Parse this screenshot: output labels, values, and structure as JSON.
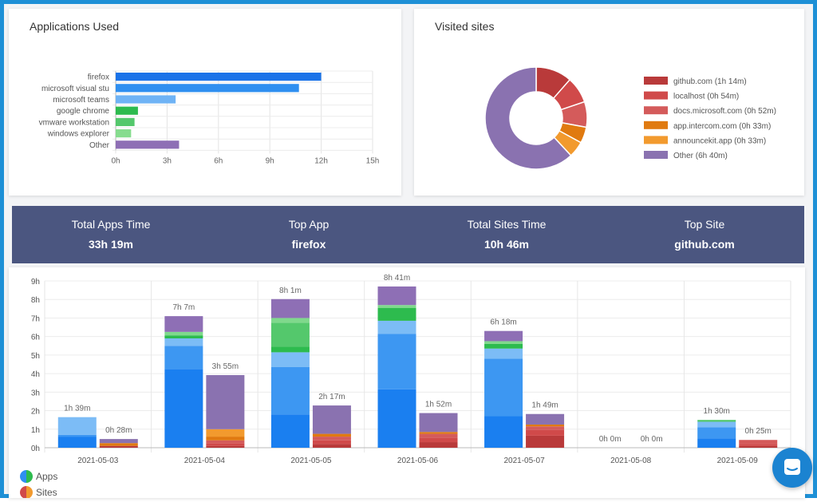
{
  "apps_panel": {
    "title": "Applications Used"
  },
  "sites_panel": {
    "title": "Visited sites"
  },
  "summary": {
    "total_apps_label": "Total Apps Time",
    "total_apps_value": "33h 19m",
    "top_app_label": "Top App",
    "top_app_value": "firefox",
    "total_sites_label": "Total Sites Time",
    "total_sites_value": "10h 46m",
    "top_site_label": "Top Site",
    "top_site_value": "github.com"
  },
  "chart_data": [
    {
      "type": "bar",
      "orientation": "horizontal",
      "title": "Applications Used",
      "categories": [
        "firefox",
        "microsoft visual stu",
        "microsoft teams",
        "google chrome",
        "vmware workstation",
        "windows explorer",
        "Other"
      ],
      "values": [
        12,
        10.7,
        3.5,
        1.3,
        1.1,
        0.9,
        3.7
      ],
      "colors": [
        "#1a73e8",
        "#2f8ff0",
        "#6fb3f5",
        "#2dbb4e",
        "#54c86c",
        "#86dc8e",
        "#8e6fb5"
      ],
      "xticks": [
        "0h",
        "3h",
        "6h",
        "9h",
        "12h",
        "15h"
      ],
      "xlim": [
        0,
        15
      ],
      "grid": true
    },
    {
      "type": "pie",
      "style": "donut",
      "title": "Visited sites",
      "labels": [
        "github.com (1h 14m)",
        "localhost (0h 54m)",
        "docs.microsoft.com (0h 52m)",
        "app.intercom.com (0h 33m)",
        "announcekit.app (0h 33m)",
        "Other (6h 40m)"
      ],
      "values": [
        74,
        54,
        52,
        33,
        33,
        400
      ],
      "colors": [
        "#b93a3a",
        "#d04a4a",
        "#d45b5b",
        "#e07a10",
        "#f29a2e",
        "#8a72b0"
      ],
      "legend": "right"
    },
    {
      "type": "bar",
      "stacked": true,
      "categories": [
        "2021-05-03",
        "2021-05-04",
        "2021-05-05",
        "2021-05-06",
        "2021-05-07",
        "2021-05-08",
        "2021-05-09"
      ],
      "groups": [
        "Apps",
        "Sites"
      ],
      "yticks": [
        "0h",
        "1h",
        "2h",
        "3h",
        "4h",
        "5h",
        "6h",
        "7h",
        "8h",
        "9h"
      ],
      "ylim": [
        0,
        9
      ],
      "grid": true,
      "apps": [
        {
          "label": "1h 39m",
          "segments": [
            {
              "v": 0.6,
              "c": "#1a7ff0"
            },
            {
              "v": 0.1,
              "c": "#3d97f2"
            },
            {
              "v": 0.95,
              "c": "#7cbcf6"
            }
          ]
        },
        {
          "label": "7h 7m",
          "segments": [
            {
              "v": 4.25,
              "c": "#1a7ff0"
            },
            {
              "v": 1.25,
              "c": "#3d97f2"
            },
            {
              "v": 0.4,
              "c": "#7cbcf6"
            },
            {
              "v": 0.15,
              "c": "#2dbb4e"
            },
            {
              "v": 0.2,
              "c": "#7fd98c"
            },
            {
              "v": 0.85,
              "c": "#8e6fb5"
            }
          ]
        },
        {
          "label": "8h 1m",
          "segments": [
            {
              "v": 1.8,
              "c": "#1a7ff0"
            },
            {
              "v": 2.55,
              "c": "#3d97f2"
            },
            {
              "v": 0.8,
              "c": "#7cbcf6"
            },
            {
              "v": 0.3,
              "c": "#2dbb4e"
            },
            {
              "v": 1.3,
              "c": "#54c86c"
            },
            {
              "v": 0.25,
              "c": "#7fd98c"
            },
            {
              "v": 1.02,
              "c": "#8e6fb5"
            }
          ]
        },
        {
          "label": "8h 41m",
          "segments": [
            {
              "v": 3.15,
              "c": "#1a7ff0"
            },
            {
              "v": 3.0,
              "c": "#3d97f2"
            },
            {
              "v": 0.7,
              "c": "#7cbcf6"
            },
            {
              "v": 0.7,
              "c": "#2dbb4e"
            },
            {
              "v": 0.15,
              "c": "#7fd98c"
            },
            {
              "v": 1.0,
              "c": "#8e6fb5"
            }
          ]
        },
        {
          "label": "6h 18m",
          "segments": [
            {
              "v": 1.7,
              "c": "#1a7ff0"
            },
            {
              "v": 3.1,
              "c": "#3d97f2"
            },
            {
              "v": 0.55,
              "c": "#7cbcf6"
            },
            {
              "v": 0.25,
              "c": "#2dbb4e"
            },
            {
              "v": 0.15,
              "c": "#7fd98c"
            },
            {
              "v": 0.55,
              "c": "#8e6fb5"
            }
          ]
        },
        {
          "label": "0h 0m",
          "segments": []
        },
        {
          "label": "1h 30m",
          "segments": [
            {
              "v": 0.5,
              "c": "#1a7ff0"
            },
            {
              "v": 0.6,
              "c": "#3d97f2"
            },
            {
              "v": 0.3,
              "c": "#7cbcf6"
            },
            {
              "v": 0.1,
              "c": "#54c86c"
            }
          ]
        }
      ],
      "sites": [
        {
          "label": "0h 28m",
          "segments": [
            {
              "v": 0.1,
              "c": "#b93a3a"
            },
            {
              "v": 0.15,
              "c": "#e07a10"
            },
            {
              "v": 0.22,
              "c": "#8a72b0"
            }
          ]
        },
        {
          "label": "3h 55m",
          "segments": [
            {
              "v": 0.1,
              "c": "#b93a3a"
            },
            {
              "v": 0.15,
              "c": "#d04a4a"
            },
            {
              "v": 0.15,
              "c": "#d45b5b"
            },
            {
              "v": 0.2,
              "c": "#e07a10"
            },
            {
              "v": 0.4,
              "c": "#f29a2e"
            },
            {
              "v": 2.92,
              "c": "#8a72b0"
            }
          ]
        },
        {
          "label": "2h 17m",
          "segments": [
            {
              "v": 0.2,
              "c": "#b93a3a"
            },
            {
              "v": 0.2,
              "c": "#d04a4a"
            },
            {
              "v": 0.2,
              "c": "#d45b5b"
            },
            {
              "v": 0.15,
              "c": "#e07a10"
            },
            {
              "v": 1.53,
              "c": "#8a72b0"
            }
          ]
        },
        {
          "label": "1h 52m",
          "segments": [
            {
              "v": 0.3,
              "c": "#b93a3a"
            },
            {
              "v": 0.25,
              "c": "#d04a4a"
            },
            {
              "v": 0.2,
              "c": "#d45b5b"
            },
            {
              "v": 0.1,
              "c": "#e07a10"
            },
            {
              "v": 1.02,
              "c": "#8a72b0"
            }
          ]
        },
        {
          "label": "1h 49m",
          "segments": [
            {
              "v": 0.65,
              "c": "#b93a3a"
            },
            {
              "v": 0.3,
              "c": "#d04a4a"
            },
            {
              "v": 0.2,
              "c": "#d45b5b"
            },
            {
              "v": 0.1,
              "c": "#e07a10"
            },
            {
              "v": 0.57,
              "c": "#8a72b0"
            }
          ]
        },
        {
          "label": "0h 0m",
          "segments": []
        },
        {
          "label": "0h 25m",
          "segments": [
            {
              "v": 0.1,
              "c": "#b93a3a"
            },
            {
              "v": 0.1,
              "c": "#d04a4a"
            },
            {
              "v": 0.22,
              "c": "#d45b5b"
            }
          ]
        }
      ],
      "legend": [
        {
          "name": "Apps",
          "colors": [
            "#2f8ff0",
            "#2dbb4e"
          ]
        },
        {
          "name": "Sites",
          "colors": [
            "#d04a4a",
            "#f29a2e"
          ]
        }
      ]
    }
  ]
}
